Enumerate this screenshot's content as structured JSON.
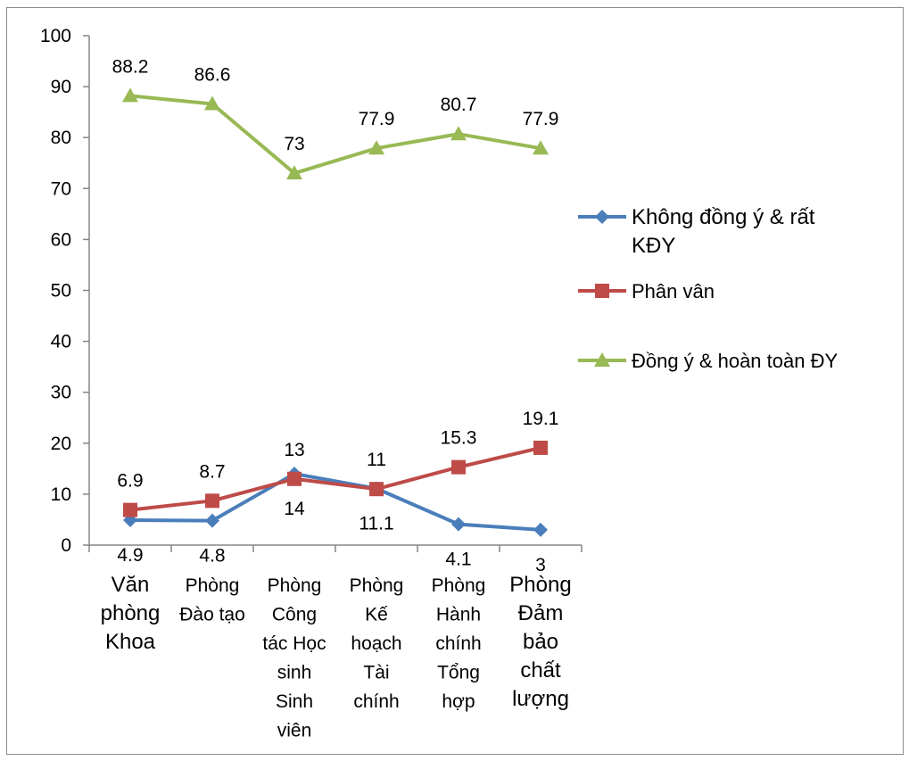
{
  "chart_data": {
    "type": "line",
    "title": "",
    "xlabel": "",
    "ylabel": "",
    "ylim": [
      0,
      100
    ],
    "yticks": [
      0,
      10,
      20,
      30,
      40,
      50,
      60,
      70,
      80,
      90,
      100
    ],
    "grid": false,
    "legend_position": "right",
    "categories": [
      [
        "Văn",
        "phòng",
        "Khoa"
      ],
      [
        "Phòng",
        "Đào tạo"
      ],
      [
        "Phòng",
        "Công",
        "tác Học",
        "sinh",
        "Sinh",
        "viên"
      ],
      [
        "Phòng",
        "Kế",
        "hoạch",
        "Tài",
        "chính"
      ],
      [
        "Phòng",
        "Hành",
        "chính",
        "Tổng",
        "hợp"
      ],
      [
        "Phòng",
        "Đảm",
        "bảo",
        "chất",
        "lượng"
      ]
    ],
    "series": [
      {
        "name": [
          "Không đồng ý & rất",
          "KĐY"
        ],
        "values": [
          4.9,
          4.8,
          14,
          11.1,
          4.1,
          3
        ],
        "color": "#4a7ebb",
        "marker": "diamond"
      },
      {
        "name": [
          "Phân vân"
        ],
        "values": [
          6.9,
          8.7,
          13,
          11,
          15.3,
          19.1
        ],
        "color": "#be4b48",
        "marker": "square"
      },
      {
        "name": [
          "Đồng ý & hoàn toàn ĐY"
        ],
        "values": [
          88.2,
          86.6,
          73,
          77.9,
          80.7,
          77.9
        ],
        "color": "#98b954",
        "marker": "triangle"
      }
    ]
  }
}
